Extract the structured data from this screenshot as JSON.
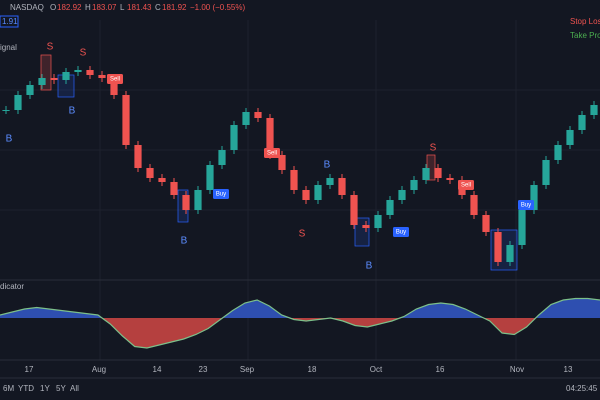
{
  "header": {
    "symbol": "NASDAQ",
    "ohlc": [
      {
        "label": "O",
        "value": "182.92"
      },
      {
        "label": "H",
        "value": "183.07"
      },
      {
        "label": "L",
        "value": "181.43"
      },
      {
        "label": "C",
        "value": "181.92"
      }
    ],
    "change": "−1.00 (−0.55%)",
    "price_tag": "1.91"
  },
  "legend": {
    "stop_loss": "Stop Los",
    "take_profit": "Take Prof"
  },
  "price_panel": {
    "title": "ignal",
    "closes": [
      179.0,
      180.5,
      181.5,
      182.2,
      182.0,
      182.8,
      183.0,
      182.5,
      182.2,
      180.5,
      175.5,
      173.2,
      172.2,
      171.8,
      170.5,
      169.0,
      171.0,
      173.5,
      175.0,
      177.5,
      178.8,
      178.2,
      174.5,
      173.0,
      171.0,
      170.0,
      171.5,
      172.2,
      170.5,
      167.5,
      167.2,
      168.5,
      170.0,
      171.0,
      172.0,
      173.2,
      172.2,
      172.0,
      170.5,
      168.5,
      166.8,
      163.8,
      165.5,
      169.0,
      171.5,
      174.0,
      175.5,
      177.0,
      178.5,
      179.5
    ],
    "signals": [
      "S",
      "S",
      "B",
      "B",
      "B",
      "S",
      "B",
      "S",
      "B",
      "Sell",
      "Sell",
      "Sell",
      "Buy",
      "Buy",
      "Buy"
    ]
  },
  "indicator_panel": {
    "title": "dicator",
    "values": [
      0.1,
      0.2,
      0.3,
      0.35,
      0.3,
      0.25,
      0.2,
      0.15,
      0.1,
      -0.2,
      -0.6,
      -0.95,
      -1.0,
      -0.9,
      -0.8,
      -0.7,
      -0.55,
      -0.35,
      -0.05,
      0.25,
      0.5,
      0.6,
      0.4,
      0.1,
      -0.05,
      -0.1,
      -0.05,
      0.0,
      -0.1,
      -0.25,
      -0.3,
      -0.2,
      -0.1,
      0.05,
      0.3,
      0.45,
      0.5,
      0.45,
      0.3,
      0.1,
      -0.1,
      -0.5,
      -0.55,
      -0.3,
      0.1,
      0.45,
      0.6,
      0.65,
      0.65,
      0.6
    ]
  },
  "time_axis": [
    "17",
    "Aug",
    "14",
    "23",
    "Sep",
    "18",
    "Oct",
    "16",
    "Nov",
    "13"
  ],
  "toolbar": {
    "ranges": [
      "6M",
      "YTD",
      "1Y",
      "5Y",
      "All"
    ],
    "clock": "04:25:45"
  }
}
